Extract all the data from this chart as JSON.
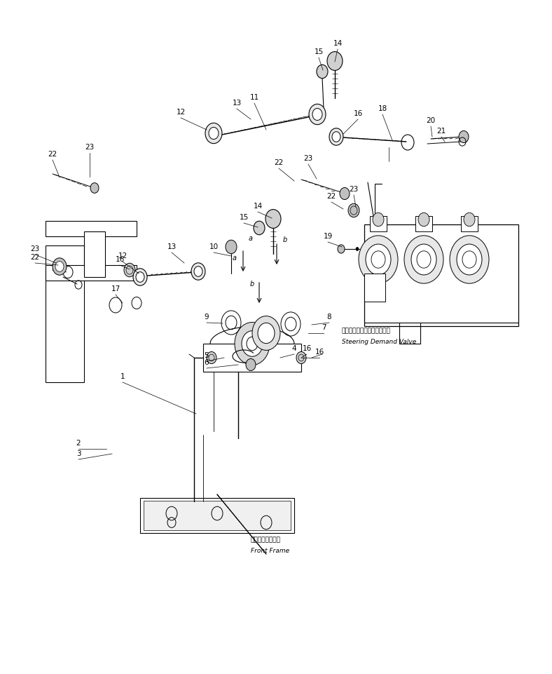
{
  "bg_color": "#ffffff",
  "line_color": "#000000",
  "fig_width": 7.88,
  "fig_height": 9.61,
  "dpi": 100,
  "label_japanese_valve": "ステアリングデマンドバルブ",
  "label_english_valve": "Steering Demand Valve",
  "label_japanese_frame": "フロントフレーム",
  "label_english_frame": "Front Frame"
}
